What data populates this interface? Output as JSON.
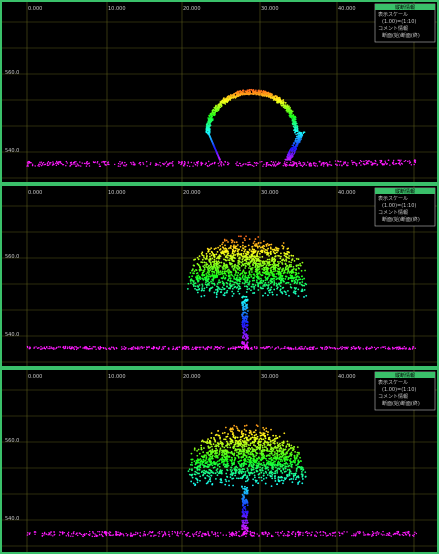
{
  "panels": [
    {
      "legend": {
        "title": "縦断情報",
        "rows": [
          "表示スケール",
          "(1.00)=(1:10)",
          "コメント情報",
          "断面(始)断面(終)"
        ]
      },
      "top_labels": [
        "0.000",
        "10.000",
        "20.000",
        "30.000",
        "40.000"
      ],
      "side_labels": [
        "560.0",
        "540.0"
      ]
    },
    {
      "legend": {
        "title": "縦断情報",
        "rows": [
          "表示スケール",
          "(1.00)=(1:10)",
          "コメント情報",
          "断面(始)断面(終)"
        ]
      },
      "top_labels": [
        "0.000",
        "10.000",
        "20.000",
        "30.000",
        "40.000"
      ],
      "side_labels": [
        "560.0",
        "540.0"
      ]
    },
    {
      "legend": {
        "title": "縦断情報",
        "rows": [
          "表示スケール",
          "(1.00)=(1:10)",
          "コメント情報",
          "断面(始)断面(終)"
        ]
      },
      "top_labels": [
        "0.000",
        "10.000",
        "20.000",
        "30.000",
        "40.000"
      ],
      "side_labels": [
        "560.0",
        "540.0"
      ]
    }
  ]
}
